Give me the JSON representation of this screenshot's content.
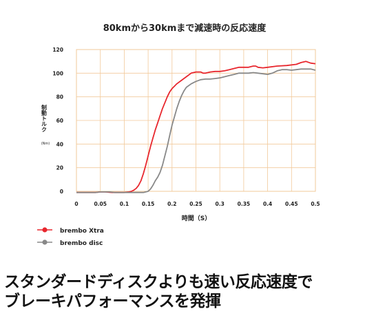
{
  "chart_data": {
    "type": "line",
    "title": "80kmから30kmまで減速時の反応速度",
    "xlabel": "時間（S）",
    "ylabel": "制動トルク",
    "ylabel_unit": "(Nm)",
    "xlim": [
      0,
      0.5
    ],
    "ylim": [
      0,
      120
    ],
    "x_ticks": [
      "0",
      "0.05",
      "0.1",
      "0.15",
      "0.2",
      "0.25",
      "0.3",
      "0.35",
      "0.4",
      "0.45",
      "0.5"
    ],
    "y_ticks": [
      "0",
      "20",
      "40",
      "60",
      "80",
      "100",
      "120"
    ],
    "grid": true,
    "legend_position": "bottom-left",
    "series": [
      {
        "name": "brembo Xtra",
        "color": "#e8262d",
        "points": [
          [
            0,
            -1
          ],
          [
            0.02,
            -1
          ],
          [
            0.04,
            -1
          ],
          [
            0.05,
            -0.5
          ],
          [
            0.06,
            -0.5
          ],
          [
            0.075,
            -1
          ],
          [
            0.09,
            -1
          ],
          [
            0.1,
            -1
          ],
          [
            0.11,
            -0.5
          ],
          [
            0.115,
            0
          ],
          [
            0.12,
            1
          ],
          [
            0.125,
            2.5
          ],
          [
            0.13,
            5
          ],
          [
            0.135,
            9
          ],
          [
            0.14,
            15
          ],
          [
            0.145,
            22
          ],
          [
            0.15,
            30
          ],
          [
            0.155,
            38
          ],
          [
            0.16,
            45
          ],
          [
            0.165,
            52
          ],
          [
            0.17,
            58
          ],
          [
            0.175,
            64
          ],
          [
            0.18,
            70
          ],
          [
            0.185,
            75
          ],
          [
            0.19,
            80
          ],
          [
            0.195,
            84
          ],
          [
            0.2,
            87
          ],
          [
            0.205,
            89
          ],
          [
            0.21,
            91
          ],
          [
            0.22,
            94
          ],
          [
            0.23,
            97
          ],
          [
            0.24,
            100
          ],
          [
            0.25,
            101
          ],
          [
            0.26,
            101
          ],
          [
            0.265,
            100
          ],
          [
            0.27,
            100
          ],
          [
            0.28,
            101
          ],
          [
            0.29,
            101.5
          ],
          [
            0.3,
            101.5
          ],
          [
            0.31,
            102
          ],
          [
            0.32,
            103
          ],
          [
            0.33,
            104
          ],
          [
            0.34,
            105
          ],
          [
            0.35,
            105
          ],
          [
            0.36,
            105
          ],
          [
            0.37,
            106
          ],
          [
            0.375,
            106
          ],
          [
            0.38,
            105
          ],
          [
            0.39,
            104.5
          ],
          [
            0.4,
            105
          ],
          [
            0.42,
            106
          ],
          [
            0.44,
            106.5
          ],
          [
            0.46,
            107.5
          ],
          [
            0.47,
            109
          ],
          [
            0.48,
            110
          ],
          [
            0.49,
            108.5
          ],
          [
            0.5,
            108
          ]
        ]
      },
      {
        "name": "brembo disc",
        "color": "#888888",
        "points": [
          [
            0,
            -1
          ],
          [
            0.02,
            -1
          ],
          [
            0.04,
            -1
          ],
          [
            0.05,
            -0.5
          ],
          [
            0.07,
            -0.5
          ],
          [
            0.08,
            -1
          ],
          [
            0.1,
            -1
          ],
          [
            0.12,
            -1
          ],
          [
            0.14,
            -1
          ],
          [
            0.145,
            -0.5
          ],
          [
            0.15,
            0
          ],
          [
            0.155,
            2
          ],
          [
            0.16,
            5
          ],
          [
            0.165,
            9
          ],
          [
            0.17,
            12
          ],
          [
            0.175,
            16
          ],
          [
            0.18,
            22
          ],
          [
            0.185,
            30
          ],
          [
            0.19,
            38
          ],
          [
            0.195,
            47
          ],
          [
            0.2,
            56
          ],
          [
            0.205,
            63
          ],
          [
            0.21,
            70
          ],
          [
            0.215,
            76
          ],
          [
            0.22,
            81
          ],
          [
            0.225,
            85
          ],
          [
            0.23,
            88
          ],
          [
            0.24,
            91
          ],
          [
            0.25,
            93
          ],
          [
            0.26,
            94.5
          ],
          [
            0.27,
            95
          ],
          [
            0.28,
            95
          ],
          [
            0.29,
            95.5
          ],
          [
            0.3,
            96
          ],
          [
            0.31,
            97
          ],
          [
            0.32,
            98
          ],
          [
            0.33,
            99
          ],
          [
            0.34,
            100
          ],
          [
            0.35,
            100
          ],
          [
            0.36,
            100
          ],
          [
            0.37,
            100.5
          ],
          [
            0.38,
            100
          ],
          [
            0.39,
            99.5
          ],
          [
            0.4,
            99
          ],
          [
            0.41,
            100
          ],
          [
            0.42,
            102
          ],
          [
            0.43,
            103
          ],
          [
            0.44,
            103
          ],
          [
            0.45,
            102.5
          ],
          [
            0.46,
            103
          ],
          [
            0.47,
            103.5
          ],
          [
            0.48,
            103.5
          ],
          [
            0.49,
            103.5
          ],
          [
            0.5,
            102.5
          ]
        ]
      }
    ]
  },
  "headline": {
    "line1": "スタンダードディスクよりも速い反応速度で",
    "line2": "ブレーキパフォーマンスを発揮"
  }
}
